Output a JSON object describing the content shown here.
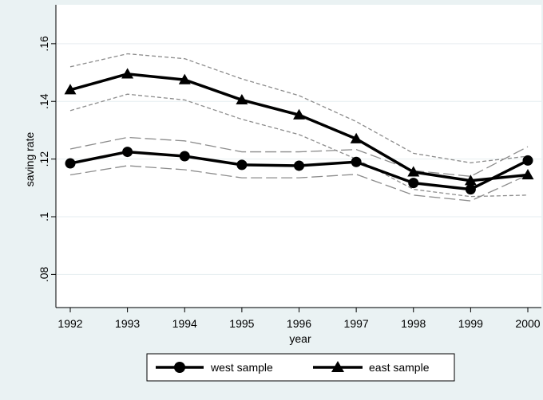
{
  "chart_data": {
    "type": "line",
    "title": "",
    "xlabel": "year",
    "ylabel": "saving rate",
    "x": [
      1992,
      1993,
      1994,
      1995,
      1996,
      1997,
      1998,
      1999,
      2000
    ],
    "x_tick_labels": [
      "1992",
      "1993",
      "1994",
      "1995",
      "1996",
      "1997",
      "1998",
      "1999",
      "2000"
    ],
    "y_ticks": [
      0.08,
      0.1,
      0.12,
      0.14,
      0.16
    ],
    "y_tick_labels": [
      ".08",
      ".1",
      ".12",
      ".14",
      ".16"
    ],
    "xlim": [
      1992,
      2000
    ],
    "ylim": [
      0.0685,
      0.1735
    ],
    "grid": "horizontal",
    "legend_position": "bottom",
    "series": [
      {
        "name": "west sample",
        "marker": "circle",
        "values": [
          0.1185,
          0.1225,
          0.121,
          0.118,
          0.1177,
          0.119,
          0.1117,
          0.1095,
          0.1195
        ],
        "band_style": "long-dash",
        "band_upper": [
          0.1235,
          0.1275,
          0.1263,
          0.1225,
          0.1225,
          0.1233,
          0.116,
          0.114,
          0.1243
        ],
        "band_lower": [
          0.1145,
          0.1177,
          0.1163,
          0.1135,
          0.1135,
          0.1147,
          0.1075,
          0.1055,
          0.1145
        ]
      },
      {
        "name": "east sample",
        "marker": "triangle",
        "values": [
          0.144,
          0.1495,
          0.1475,
          0.1405,
          0.1353,
          0.127,
          0.1155,
          0.1125,
          0.1145
        ],
        "band_style": "short-dash",
        "band_upper": [
          0.152,
          0.1565,
          0.1548,
          0.1478,
          0.142,
          0.133,
          0.122,
          0.1187,
          0.121
        ],
        "band_lower": [
          0.1368,
          0.1425,
          0.1405,
          0.1338,
          0.1285,
          0.12,
          0.1095,
          0.107,
          0.1075
        ]
      }
    ],
    "colors": {
      "outer_background": "#eaf2f3",
      "plot_background": "#ffffff",
      "series_line": "#000000",
      "band_line": "#8c8c8c",
      "gridline": "#e6eef0",
      "axis": "#000000"
    }
  }
}
